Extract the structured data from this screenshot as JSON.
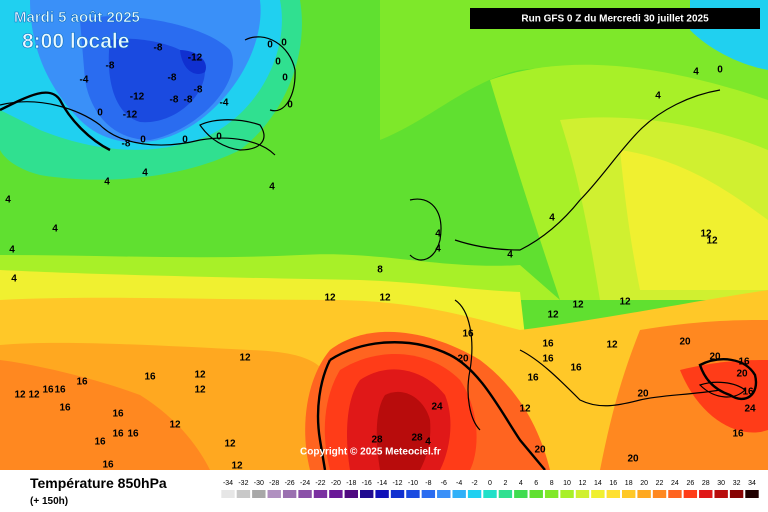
{
  "map": {
    "date": "Mardi 5 août 2025",
    "time": "8:00 locale",
    "run": "Run GFS 0 Z du Mercredi 30 juillet 2025",
    "copyright": "Copyright © 2025 Meteociel.fr",
    "title": "Température 850hPa",
    "lead": "(+ 150h)",
    "contour_labels": [
      "-8",
      "-12",
      "-8",
      "-8",
      "-4",
      "-8",
      "-12",
      "-8",
      "-8",
      "-4",
      "-12",
      "0",
      "0",
      "0",
      "0",
      "0",
      "0",
      "0",
      "-8",
      "0",
      "0",
      "4",
      "4",
      "4",
      "4",
      "4",
      "4",
      "4",
      "4",
      "4",
      "4",
      "4",
      "8",
      "12",
      "12",
      "12",
      "12",
      "12",
      "12",
      "16",
      "16",
      "16",
      "16",
      "16",
      "20",
      "20",
      "20",
      "16",
      "20",
      "16",
      "20",
      "24",
      "24",
      "12",
      "12",
      "16",
      "12",
      "12",
      "12",
      "12",
      "16",
      "16",
      "16",
      "16",
      "16",
      "12",
      "16",
      "16",
      "16",
      "16",
      "12",
      "12",
      "28",
      "28",
      "4",
      "20",
      "20",
      "16",
      "4",
      "0",
      "12",
      "12",
      "4"
    ],
    "scale": {
      "values": [
        -34,
        -32,
        -30,
        -28,
        -26,
        -24,
        -22,
        -20,
        -18,
        -16,
        -14,
        -12,
        -10,
        -8,
        -6,
        -4,
        -2,
        0,
        2,
        4,
        6,
        8,
        10,
        12,
        14,
        16,
        18,
        20,
        22,
        24,
        26,
        28,
        30,
        32,
        34
      ],
      "colors": [
        "#e6e6e6",
        "#c8c8c8",
        "#a8a8a8",
        "#b090c0",
        "#9a70b0",
        "#8a50a8",
        "#7a30a0",
        "#6a1898",
        "#500a80",
        "#200a90",
        "#1010b8",
        "#1030d0",
        "#1a4ae0",
        "#2a6cf0",
        "#3a90f8",
        "#30b0f8",
        "#20d0f0",
        "#20e0c8",
        "#30e090",
        "#40dc50",
        "#60e030",
        "#80e828",
        "#a8f028",
        "#d0f030",
        "#f0f030",
        "#ffe030",
        "#ffc828",
        "#ffa820",
        "#ff8820",
        "#ff6420",
        "#ff3c18",
        "#e01818",
        "#b80c0c",
        "#880404",
        "#200000"
      ]
    }
  }
}
